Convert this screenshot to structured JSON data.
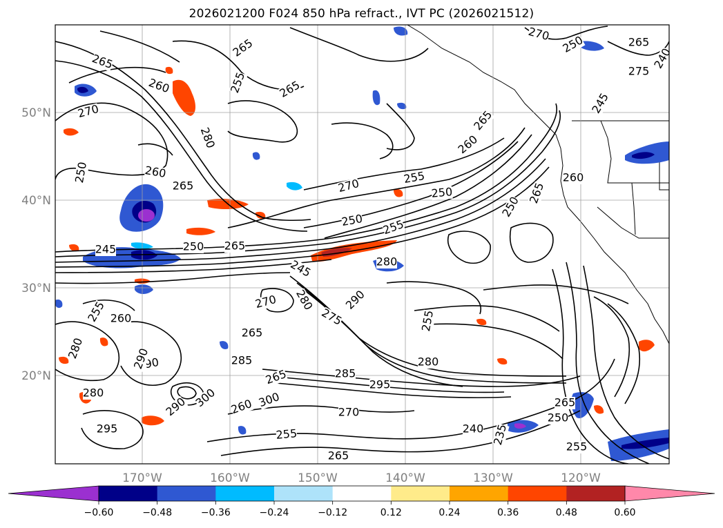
{
  "title": "2026021200 F024 850 hPa refract., IVT PC (2026021512)",
  "map": {
    "lat_labels": [
      "50°N",
      "40°N",
      "30°N",
      "20°N"
    ],
    "lon_labels": [
      "170°W",
      "160°W",
      "150°W",
      "140°W",
      "130°W",
      "120°W"
    ],
    "extent": {
      "lon": [
        -180,
        -110
      ],
      "lat": [
        10,
        60
      ]
    },
    "grid": true,
    "contour_labels": [
      "265",
      "270",
      "250",
      "260",
      "265",
      "260",
      "280",
      "265",
      "255",
      "265",
      "270",
      "255",
      "250",
      "260",
      "265",
      "250",
      "255",
      "250",
      "265",
      "260",
      "245",
      "270",
      "250",
      "265",
      "275",
      "240",
      "245",
      "250",
      "265",
      "245",
      "280",
      "270",
      "275",
      "280",
      "290",
      "255",
      "280",
      "265",
      "260",
      "255",
      "290",
      "280",
      "290",
      "285",
      "265",
      "285",
      "295",
      "280",
      "290",
      "300",
      "300",
      "295",
      "270",
      "260",
      "265",
      "250",
      "255",
      "255",
      "240",
      "235",
      "265"
    ]
  },
  "colorbar": {
    "ticks": [
      "−0.60",
      "−0.48",
      "−0.36",
      "−0.24",
      "−0.12",
      "0.12",
      "0.24",
      "0.36",
      "0.48",
      "0.60"
    ],
    "colors": [
      "#9b30d0",
      "#000088",
      "#2f58d2",
      "#00bbff",
      "#aee3fa",
      "#ffffff",
      "#ffeb8a",
      "#ffa500",
      "#ff4500",
      "#b22222",
      "#ff88aa"
    ]
  }
}
